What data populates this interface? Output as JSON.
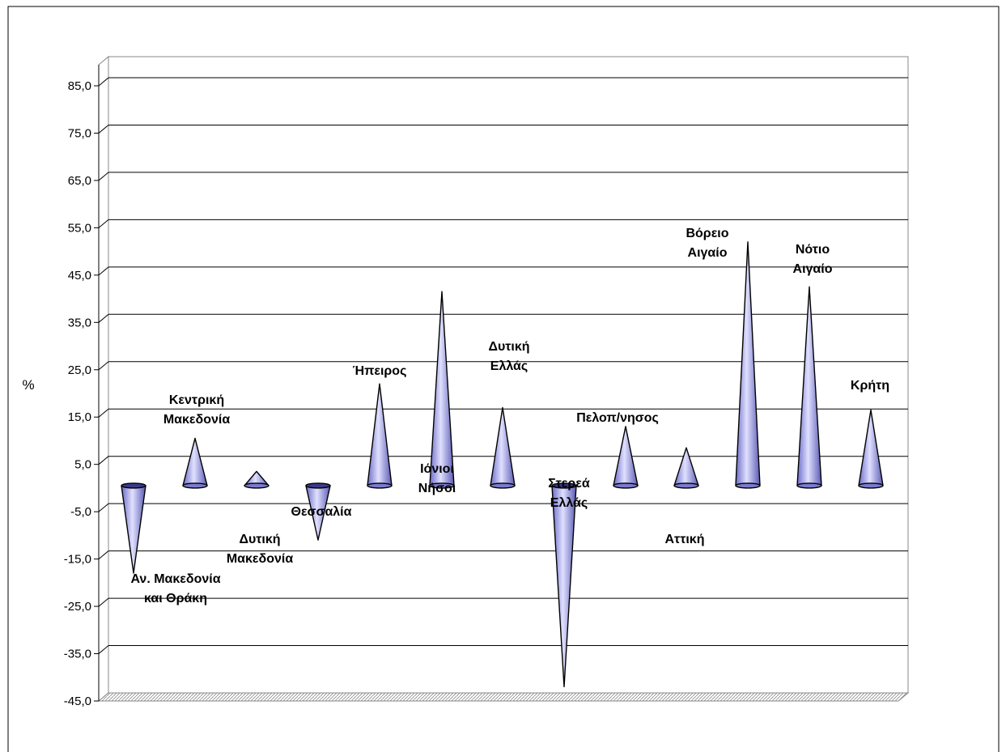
{
  "chart_data": {
    "type": "bar",
    "ylabel": "%",
    "ylim": [
      -45,
      85
    ],
    "yticks": [
      "85,0",
      "75,0",
      "65,0",
      "55,0",
      "45,0",
      "35,0",
      "25,0",
      "15,0",
      "5,0",
      "-5,0",
      "-15,0",
      "-25,0",
      "-35,0",
      "-45,0"
    ],
    "grid": true,
    "categories": [
      [
        "Αν. Μακεδονία",
        "και Θράκη"
      ],
      [
        "Κεντρική",
        "Μακεδονία"
      ],
      [
        "Δυτική",
        "Μακεδονία"
      ],
      [
        "Θεσσαλία"
      ],
      [
        "Ήπειρος"
      ],
      [
        "Ιόνιοι",
        "Νήσοι"
      ],
      [
        "Δυτική",
        "Ελλάς"
      ],
      [
        "Στερεά",
        "Ελλάς"
      ],
      [
        "Πελοπ/νησος"
      ],
      [
        "Αττική"
      ],
      [
        "Βόρειο",
        "Αιγαίο"
      ],
      [
        "Νότιο",
        "Αιγαίο"
      ],
      [
        "Κρήτη"
      ]
    ],
    "values": [
      -18.5,
      10.0,
      3.0,
      -11.5,
      21.5,
      41.0,
      16.5,
      -42.5,
      12.5,
      8.0,
      51.5,
      42.0,
      16.0
    ],
    "colors": {
      "cone_fill": "#9999ff",
      "cone_dark": "#4a4a9e",
      "cone_light": "#dadaff",
      "grid": "#000000"
    }
  }
}
